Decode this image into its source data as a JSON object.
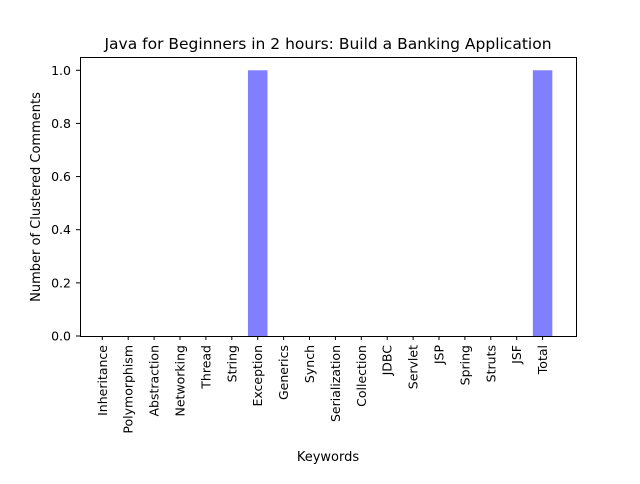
{
  "chart_data": {
    "type": "bar",
    "title": "Java for Beginners in 2 hours: Build a Banking Application",
    "xlabel": "Keywords",
    "ylabel": "Number of Clustered Comments",
    "categories": [
      "Inheritance",
      "Polymorphism",
      "Abstraction",
      "Networking",
      "Thread",
      "String",
      "Exception",
      "Generics",
      "Synch",
      "Serialization",
      "Collection",
      "JDBC",
      "Servlet",
      "JSP",
      "Spring",
      "Struts",
      "JSF",
      "Total"
    ],
    "values": [
      0,
      0,
      0,
      0,
      0,
      0,
      1,
      0,
      0,
      0,
      0,
      0,
      0,
      0,
      0,
      0,
      0,
      1
    ],
    "ylim": [
      0,
      1.05
    ],
    "yticks": [
      0.0,
      0.2,
      0.4,
      0.6,
      0.8,
      1.0
    ],
    "ytick_labels": [
      "0.0",
      "0.2",
      "0.4",
      "0.6",
      "0.8",
      "1.0"
    ],
    "bar_color": "#8080ff",
    "grid": false,
    "legend": "none"
  }
}
